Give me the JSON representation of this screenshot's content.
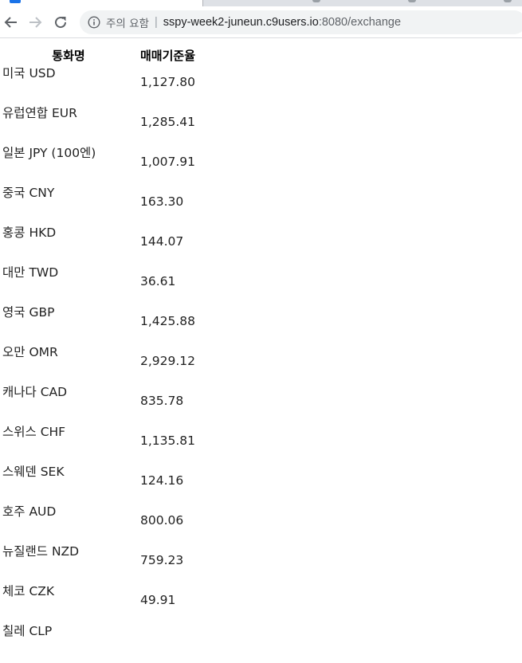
{
  "browser": {
    "security_label": "주의 요함",
    "url_host": "sspy-week2-juneun.c9users.io",
    "url_rest": ":8080/exchange"
  },
  "table": {
    "headers": {
      "name": "통화명",
      "rate": "매매기준율"
    },
    "rows": [
      {
        "name": "미국 USD",
        "rate": "1,127.80"
      },
      {
        "name": "유럽연합 EUR",
        "rate": "1,285.41"
      },
      {
        "name": "일본 JPY (100엔)",
        "rate": "1,007.91"
      },
      {
        "name": "중국 CNY",
        "rate": "163.30"
      },
      {
        "name": "홍콩 HKD",
        "rate": "144.07"
      },
      {
        "name": "대만 TWD",
        "rate": "36.61"
      },
      {
        "name": "영국 GBP",
        "rate": "1,425.88"
      },
      {
        "name": "오만 OMR",
        "rate": "2,929.12"
      },
      {
        "name": "캐나다 CAD",
        "rate": "835.78"
      },
      {
        "name": "스위스 CHF",
        "rate": "1,135.81"
      },
      {
        "name": "스웨덴 SEK",
        "rate": "124.16"
      },
      {
        "name": "호주 AUD",
        "rate": "800.06"
      },
      {
        "name": "뉴질랜드 NZD",
        "rate": "759.23"
      },
      {
        "name": "체코 CZK",
        "rate": "49.91"
      },
      {
        "name": "칠레 CLP",
        "rate": ""
      }
    ]
  }
}
